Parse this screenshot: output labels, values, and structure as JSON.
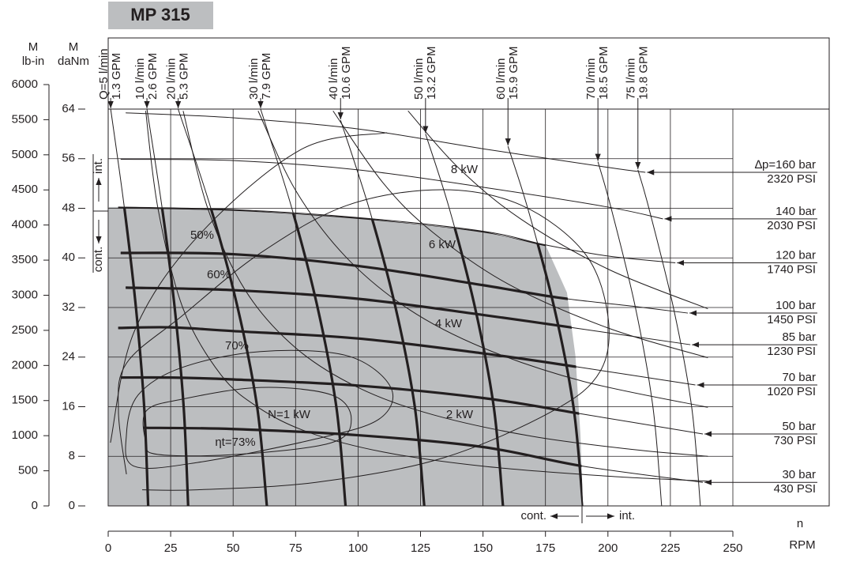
{
  "chart_data": {
    "type": "motor-performance",
    "title": "MP 315",
    "x_label": "n",
    "x_unit": "RPM",
    "y_label": "M",
    "y_unit": "daNm",
    "y2_label": "M",
    "y2_unit": "lb-in",
    "cont_label": "cont.",
    "int_label": "int.",
    "xlim": [
      0,
      250
    ],
    "xticks": [
      0,
      25,
      50,
      75,
      100,
      125,
      150,
      175,
      200,
      225,
      250
    ],
    "ylim": [
      0,
      64
    ],
    "yticks": [
      0,
      8,
      16,
      24,
      32,
      40,
      48,
      56,
      64
    ],
    "y2lim": [
      0,
      6000
    ],
    "y2ticks": [
      0,
      500,
      1000,
      1500,
      2000,
      2500,
      3000,
      3500,
      4000,
      4500,
      5000,
      5500,
      6000
    ],
    "grid": true,
    "line_color": "#231f20",
    "region": {
      "color": "#bcbec0",
      "x": [
        0,
        4,
        50,
        100,
        150,
        175,
        183.6,
        187,
        189,
        190,
        0
      ],
      "values": [
        48.2,
        48.2,
        47.8,
        46.5,
        44.3,
        42.1,
        34.4,
        24.2,
        11.5,
        0,
        0
      ]
    },
    "pressure_series": [
      {
        "name": "∆p=160 bar",
        "psi": "2320 PSI",
        "x": [
          7,
          50,
          100,
          150,
          200,
          215
        ],
        "values": [
          63.4,
          62.6,
          60.8,
          57.6,
          54.6,
          53.8
        ]
      },
      {
        "name": "140 bar",
        "psi": "2030 PSI",
        "x": [
          5,
          50,
          100,
          150,
          200,
          222
        ],
        "values": [
          55.9,
          55.7,
          54.2,
          51.4,
          48.2,
          46.3
        ]
      },
      {
        "name": "120 bar",
        "psi": "1740 PSI",
        "x": [
          4,
          50,
          100,
          150,
          175,
          200,
          227
        ],
        "values": [
          48.2,
          47.8,
          46.5,
          44.3,
          42.1,
          40.3,
          39.2
        ]
      },
      {
        "name": "100 bar",
        "psi": "1450 PSI",
        "x": [
          5,
          50,
          100,
          150,
          180,
          210,
          232
        ],
        "values": [
          40.8,
          40.6,
          38.7,
          35.6,
          33.6,
          32.2,
          31.1
        ]
      },
      {
        "name": "85 bar",
        "psi": "1230 PSI",
        "x": [
          7,
          50,
          100,
          150,
          185,
          233
        ],
        "values": [
          35.2,
          34.8,
          33.4,
          30.8,
          28.8,
          26
        ]
      },
      {
        "name": "70 bar",
        "psi": "1020 PSI",
        "x": [
          4,
          25,
          50,
          100,
          150,
          188,
          235
        ],
        "values": [
          28.7,
          28.8,
          28.2,
          27,
          24.6,
          22.4,
          19.5
        ]
      },
      {
        "name": "50 bar",
        "psi": "730 PSI",
        "x": [
          5,
          25,
          50,
          100,
          150,
          190,
          238
        ],
        "values": [
          20.7,
          20.7,
          20.4,
          19.4,
          17.4,
          14.8,
          11.6
        ]
      },
      {
        "name": "30 bar",
        "psi": "430 PSI",
        "x": [
          14,
          50,
          100,
          150,
          190,
          238
        ],
        "values": [
          12.6,
          12.4,
          11.4,
          9.5,
          6.4,
          3.8
        ]
      }
    ],
    "flow_series": [
      {
        "name": "Q=5 l/min",
        "gpm": "1.3 GPM",
        "x": [
          16,
          14.4,
          11.1,
          6.5,
          1
        ],
        "values": [
          0,
          16,
          32,
          48,
          64
        ]
      },
      {
        "name": "10 l/min",
        "gpm": "2.6 GPM",
        "x": [
          32,
          30.2,
          26.6,
          21.6,
          15.5
        ],
        "values": [
          0,
          16,
          32,
          48,
          64
        ]
      },
      {
        "name": "20 l/min",
        "gpm": "5.3 GPM",
        "x": [
          63.5,
          59.6,
          51.8,
          41.1,
          28
        ],
        "values": [
          0,
          16,
          32,
          48,
          64
        ]
      },
      {
        "name": "30 l/min",
        "gpm": "7.9 GPM",
        "x": [
          95,
          91.3,
          83.8,
          73.5,
          61
        ],
        "values": [
          0,
          16,
          32,
          48,
          64
        ]
      },
      {
        "name": "40 l/min",
        "gpm": "10.6 GPM",
        "x": [
          126.5,
          122.7,
          115,
          104.4,
          93
        ],
        "values": [
          0,
          16,
          32,
          48,
          62.2
        ]
      },
      {
        "name": "50 l/min",
        "gpm": "13.2 GPM",
        "x": [
          158,
          154.3,
          146.8,
          136.5,
          127
        ],
        "values": [
          0,
          16,
          32,
          48,
          60
        ]
      },
      {
        "name": "60 l/min",
        "gpm": "15.9 GPM",
        "x": [
          190,
          186.2,
          178.5,
          167.9,
          160
        ],
        "values": [
          0,
          16,
          32,
          48,
          58
        ]
      },
      {
        "name": "70 l/min",
        "gpm": "18.5 GPM",
        "x": [
          221.5,
          218,
          211,
          201.3,
          196
        ],
        "values": [
          0,
          16,
          32,
          48,
          55.5
        ]
      },
      {
        "name": "75 l/min",
        "gpm": "19.8 GPM",
        "x": [
          237,
          233.5,
          226.2,
          216.4,
          212
        ],
        "values": [
          0,
          16,
          32,
          48,
          54.2
        ]
      }
    ],
    "power_series": [
      {
        "name": "N=1 kW",
        "x": [
          15,
          20,
          30,
          45,
          60,
          80,
          110,
          150,
          200,
          240
        ],
        "values": [
          63.7,
          47.8,
          31.8,
          21.2,
          15.9,
          11.9,
          8.7,
          6.4,
          4.8,
          4.0
        ]
      },
      {
        "name": "2 kW",
        "x": [
          30,
          40,
          55,
          75,
          100,
          130,
          170,
          210,
          240
        ],
        "values": [
          63.7,
          47.8,
          34.7,
          25.5,
          19.1,
          14.7,
          11.2,
          9.1,
          8.0
        ]
      },
      {
        "name": "4 kW",
        "x": [
          60,
          75,
          95,
          120,
          150,
          190,
          240
        ],
        "values": [
          63.7,
          50.9,
          40.2,
          31.8,
          25.5,
          20.1,
          15.9
        ]
      },
      {
        "name": "6 kW",
        "x": [
          90,
          110,
          130,
          160,
          200,
          240
        ],
        "values": [
          63.7,
          52.1,
          44.1,
          35.8,
          28.7,
          23.9
        ]
      },
      {
        "name": "8 kW",
        "x": [
          120,
          140,
          165,
          200,
          240
        ],
        "values": [
          63.7,
          54.6,
          46.3,
          38.2,
          31.8
        ]
      }
    ],
    "efficiency_series": [
      {
        "name": "ηt=73%",
        "closed": true,
        "x": [
          15.2,
          29.4,
          61,
          89.4,
          97.3,
          89.4,
          51.5,
          19.9,
          15.2
        ],
        "values": [
          15.3,
          17.2,
          19.1,
          17.9,
          14,
          10.2,
          8.3,
          8.3,
          10.2
        ]
      },
      {
        "name": "70%",
        "closed": true,
        "x": [
          12,
          29.4,
          61,
          95.8,
          113.1,
          108.4,
          83.1,
          35.7,
          10.4,
          7.3
        ],
        "values": [
          17.9,
          22.3,
          24.9,
          24.2,
          19.1,
          14,
          10.8,
          7,
          6.4,
          11.5
        ]
      },
      {
        "name": "60%",
        "closed": false,
        "x": [
          7.3,
          4.1,
          7.3,
          29.4,
          61,
          95.8,
          133.7,
          165.3,
          190.6,
          200,
          196.9,
          177.9,
          133.7,
          83.1,
          35.7,
          13.6
        ],
        "values": [
          5.1,
          15.3,
          23,
          30.6,
          40.8,
          48.5,
          51,
          48.5,
          40.8,
          30.6,
          21.7,
          15.3,
          7.7,
          3.8,
          2.6,
          2.6
        ]
      },
      {
        "name": "50%",
        "closed": false,
        "x": [
          0.9,
          10.4,
          35.7,
          76.8,
          111.6
        ],
        "values": [
          10.2,
          28.1,
          43.4,
          57.4,
          60.2
        ]
      }
    ]
  }
}
